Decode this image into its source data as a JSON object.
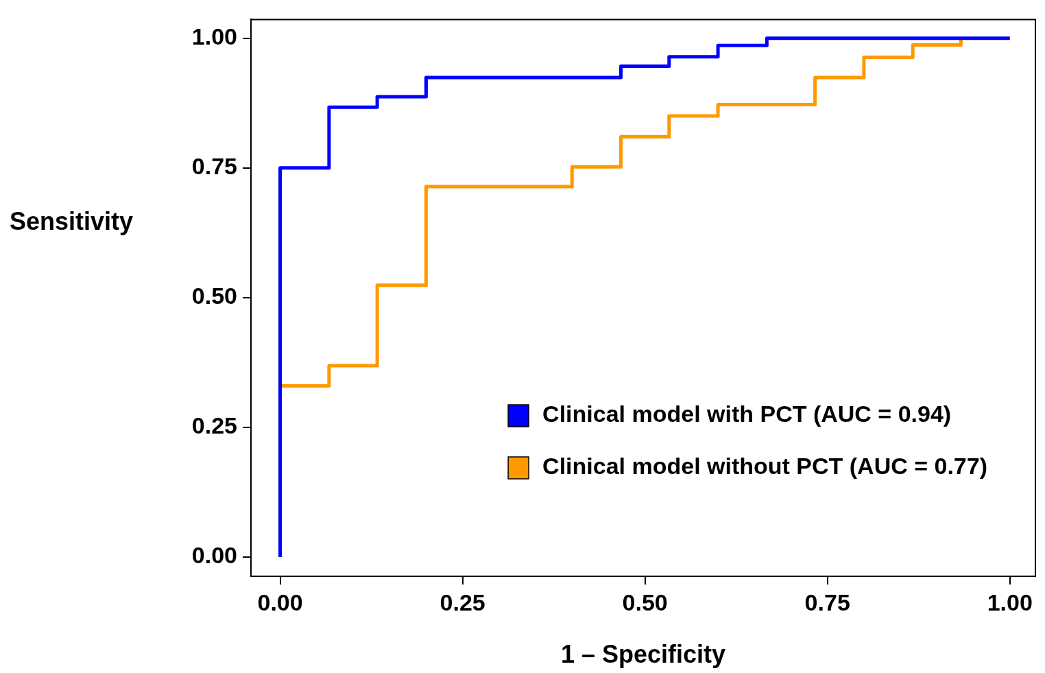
{
  "chart_data": {
    "type": "step",
    "xlabel": "1 – Specificity",
    "ylabel": "Sensitivity",
    "xlim": [
      -0.04,
      1.035
    ],
    "ylim": [
      -0.037,
      1.036
    ],
    "xticks": [
      {
        "value": 0,
        "label": "0.00"
      },
      {
        "value": 0.25,
        "label": "0.25"
      },
      {
        "value": 0.5,
        "label": "0.50"
      },
      {
        "value": 0.75,
        "label": "0.75"
      },
      {
        "value": 1,
        "label": "1.00"
      }
    ],
    "yticks": [
      {
        "value": 0,
        "label": "0.00"
      },
      {
        "value": 0.25,
        "label": "0.25"
      },
      {
        "value": 0.5,
        "label": "0.50"
      },
      {
        "value": 0.75,
        "label": "0.75"
      },
      {
        "value": 1,
        "label": "1.00"
      }
    ],
    "grid": false,
    "legend": "bottom right",
    "marker": "none",
    "line_style": "solid",
    "series": [
      {
        "name": "Clinical model with PCT (AUC = 0.94)",
        "color": "#0000ff",
        "x": [
          0,
          0,
          0.067,
          0.133,
          0.2,
          0.467,
          0.533,
          0.6,
          0.667,
          1
        ],
        "values": [
          0,
          0.75,
          0.867,
          0.887,
          0.924,
          0.946,
          0.964,
          0.986,
          1,
          1
        ]
      },
      {
        "name": "Clinical model without PCT (AUC = 0.77)",
        "color": "#ff9900",
        "x": [
          0,
          0.067,
          0.133,
          0.2,
          0.4,
          0.467,
          0.533,
          0.6,
          0.733,
          0.8,
          0.867,
          0.933
        ],
        "values": [
          0.33,
          0.369,
          0.524,
          0.714,
          0.752,
          0.81,
          0.85,
          0.872,
          0.924,
          0.963,
          0.987,
          1
        ]
      }
    ]
  }
}
